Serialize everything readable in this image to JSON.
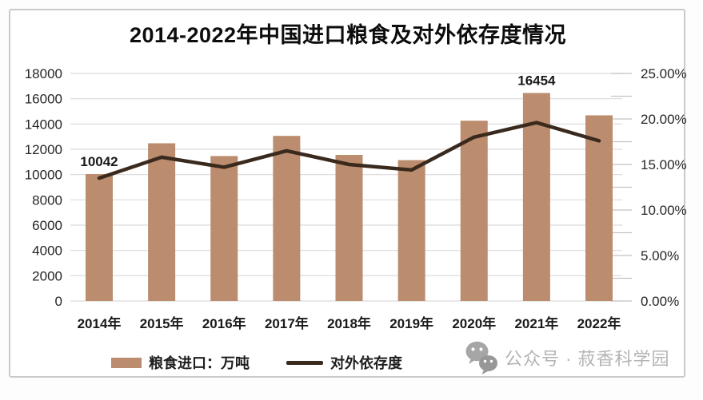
{
  "title": "2014-2022年中国进口粮食及对外依存度情况",
  "colors": {
    "bar": "#bb8c6d",
    "line": "#3a2a1e",
    "grid": "#d9d9d9",
    "minor_tick": "#c2c2c2",
    "axis_text": "#262626",
    "category_text": "#1a1a1a",
    "data_label_text": "#1a1a1a",
    "title_text": "#0d0d0d",
    "watermark": "#b4b4b4",
    "watermark_icon": "#a6a6a6",
    "card_border": "#c9c9c9"
  },
  "chart_data": {
    "type": "bar+line combo",
    "title": "2014-2022年中国进口粮食及对外依存度情况",
    "categories": [
      "2014年",
      "2015年",
      "2016年",
      "2017年",
      "2018年",
      "2019年",
      "2020年",
      "2021年",
      "2022年"
    ],
    "series": [
      {
        "name": "粮食进口：万吨",
        "type": "bar",
        "axis": "left",
        "unit": "万吨",
        "values": [
          10042,
          12477,
          11467,
          13062,
          11555,
          11144,
          14262,
          16454,
          14687
        ]
      },
      {
        "name": "对外依存度",
        "type": "line",
        "axis": "right",
        "unit": "%",
        "values": [
          13.5,
          15.8,
          14.7,
          16.5,
          15.0,
          14.4,
          18.0,
          19.6,
          17.6
        ]
      }
    ],
    "data_labels": [
      {
        "index": 0,
        "category": "2014年",
        "text": "10042"
      },
      {
        "index": 7,
        "category": "2021年",
        "text": "16454"
      }
    ],
    "left_axis": {
      "min": 0,
      "max": 18000,
      "tick_values": [
        0,
        2000,
        4000,
        6000,
        8000,
        10000,
        12000,
        14000,
        16000,
        18000
      ],
      "tick_labels": [
        "0",
        "2000",
        "4000",
        "6000",
        "8000",
        "10000",
        "12000",
        "14000",
        "16000",
        "18000"
      ]
    },
    "right_axis": {
      "min": 0,
      "max": 25,
      "minor_tick_step": 2.5,
      "tick_values": [
        0,
        5,
        10,
        15,
        20,
        25
      ],
      "tick_labels": [
        "0.00%",
        "5.00%",
        "10.00%",
        "15.00%",
        "20.00%",
        "25.00%"
      ]
    },
    "grid": "horizontal only",
    "legend_position": "bottom"
  },
  "legend": {
    "items": [
      {
        "label": "粮食进口：万吨",
        "swatch": "bar"
      },
      {
        "label": "对外依存度",
        "swatch": "line"
      }
    ]
  },
  "watermark": {
    "icon": "wechat",
    "text": "公众号 · 菽香科学园"
  }
}
